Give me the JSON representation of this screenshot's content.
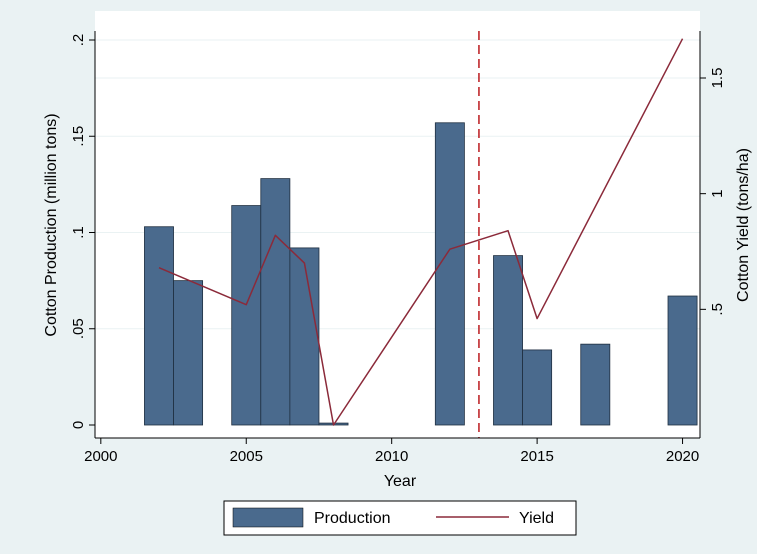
{
  "chart_data": {
    "type": "bar",
    "xlabel": "Year",
    "ylabel": "Cotton Production (million tons)",
    "y2label": "Cotton Yield (tons/ha)",
    "xlim": [
      1999.8,
      2020.6
    ],
    "ylim": [
      0,
      0.2
    ],
    "y2lim": [
      0,
      1.7
    ],
    "x_ticks": [
      {
        "value": 2000,
        "label": "2000"
      },
      {
        "value": 2005,
        "label": "2005"
      },
      {
        "value": 2010,
        "label": "2010"
      },
      {
        "value": 2015,
        "label": "2015"
      },
      {
        "value": 2020,
        "label": "2020"
      }
    ],
    "y_ticks": [
      {
        "value": 0,
        "label": "0"
      },
      {
        "value": 0.05,
        "label": ".05"
      },
      {
        "value": 0.1,
        "label": ".1"
      },
      {
        "value": 0.15,
        "label": ".15"
      },
      {
        "value": 0.2,
        "label": ".2"
      }
    ],
    "y2_ticks": [
      {
        "value": 0.5,
        "label": ".5"
      },
      {
        "value": 1,
        "label": "1"
      },
      {
        "value": 1.5,
        "label": "1.5"
      }
    ],
    "reference_line": {
      "x": 2013,
      "color": "#c0282c",
      "style": "dashed"
    },
    "series": [
      {
        "name": "Production",
        "type": "bar",
        "axis": "left",
        "color": "#4a6a8d",
        "points": [
          {
            "x": 2002,
            "y": 0.103
          },
          {
            "x": 2003,
            "y": 0.075
          },
          {
            "x": 2005,
            "y": 0.114
          },
          {
            "x": 2006,
            "y": 0.128
          },
          {
            "x": 2007,
            "y": 0.092
          },
          {
            "x": 2008,
            "y": 0.001
          },
          {
            "x": 2012,
            "y": 0.157
          },
          {
            "x": 2014,
            "y": 0.088
          },
          {
            "x": 2015,
            "y": 0.039
          },
          {
            "x": 2017,
            "y": 0.042
          },
          {
            "x": 2020,
            "y": 0.067
          }
        ]
      },
      {
        "name": "Yield",
        "type": "line",
        "axis": "right",
        "color": "#8b2a3a",
        "points": [
          {
            "x": 2002,
            "y": 0.68
          },
          {
            "x": 2005,
            "y": 0.52
          },
          {
            "x": 2006,
            "y": 0.82
          },
          {
            "x": 2007,
            "y": 0.7
          },
          {
            "x": 2008,
            "y": 0.0
          },
          {
            "x": 2012,
            "y": 0.76
          },
          {
            "x": 2014,
            "y": 0.84
          },
          {
            "x": 2015,
            "y": 0.46
          },
          {
            "x": 2020,
            "y": 1.67
          }
        ]
      }
    ],
    "legend": {
      "position": "bottom",
      "entries": [
        "Production",
        "Yield"
      ]
    },
    "grid": true,
    "colors": {
      "outer_background": "#eaf2f3",
      "plot_background": "#ffffff",
      "gridline": "#eaf2f3"
    }
  }
}
